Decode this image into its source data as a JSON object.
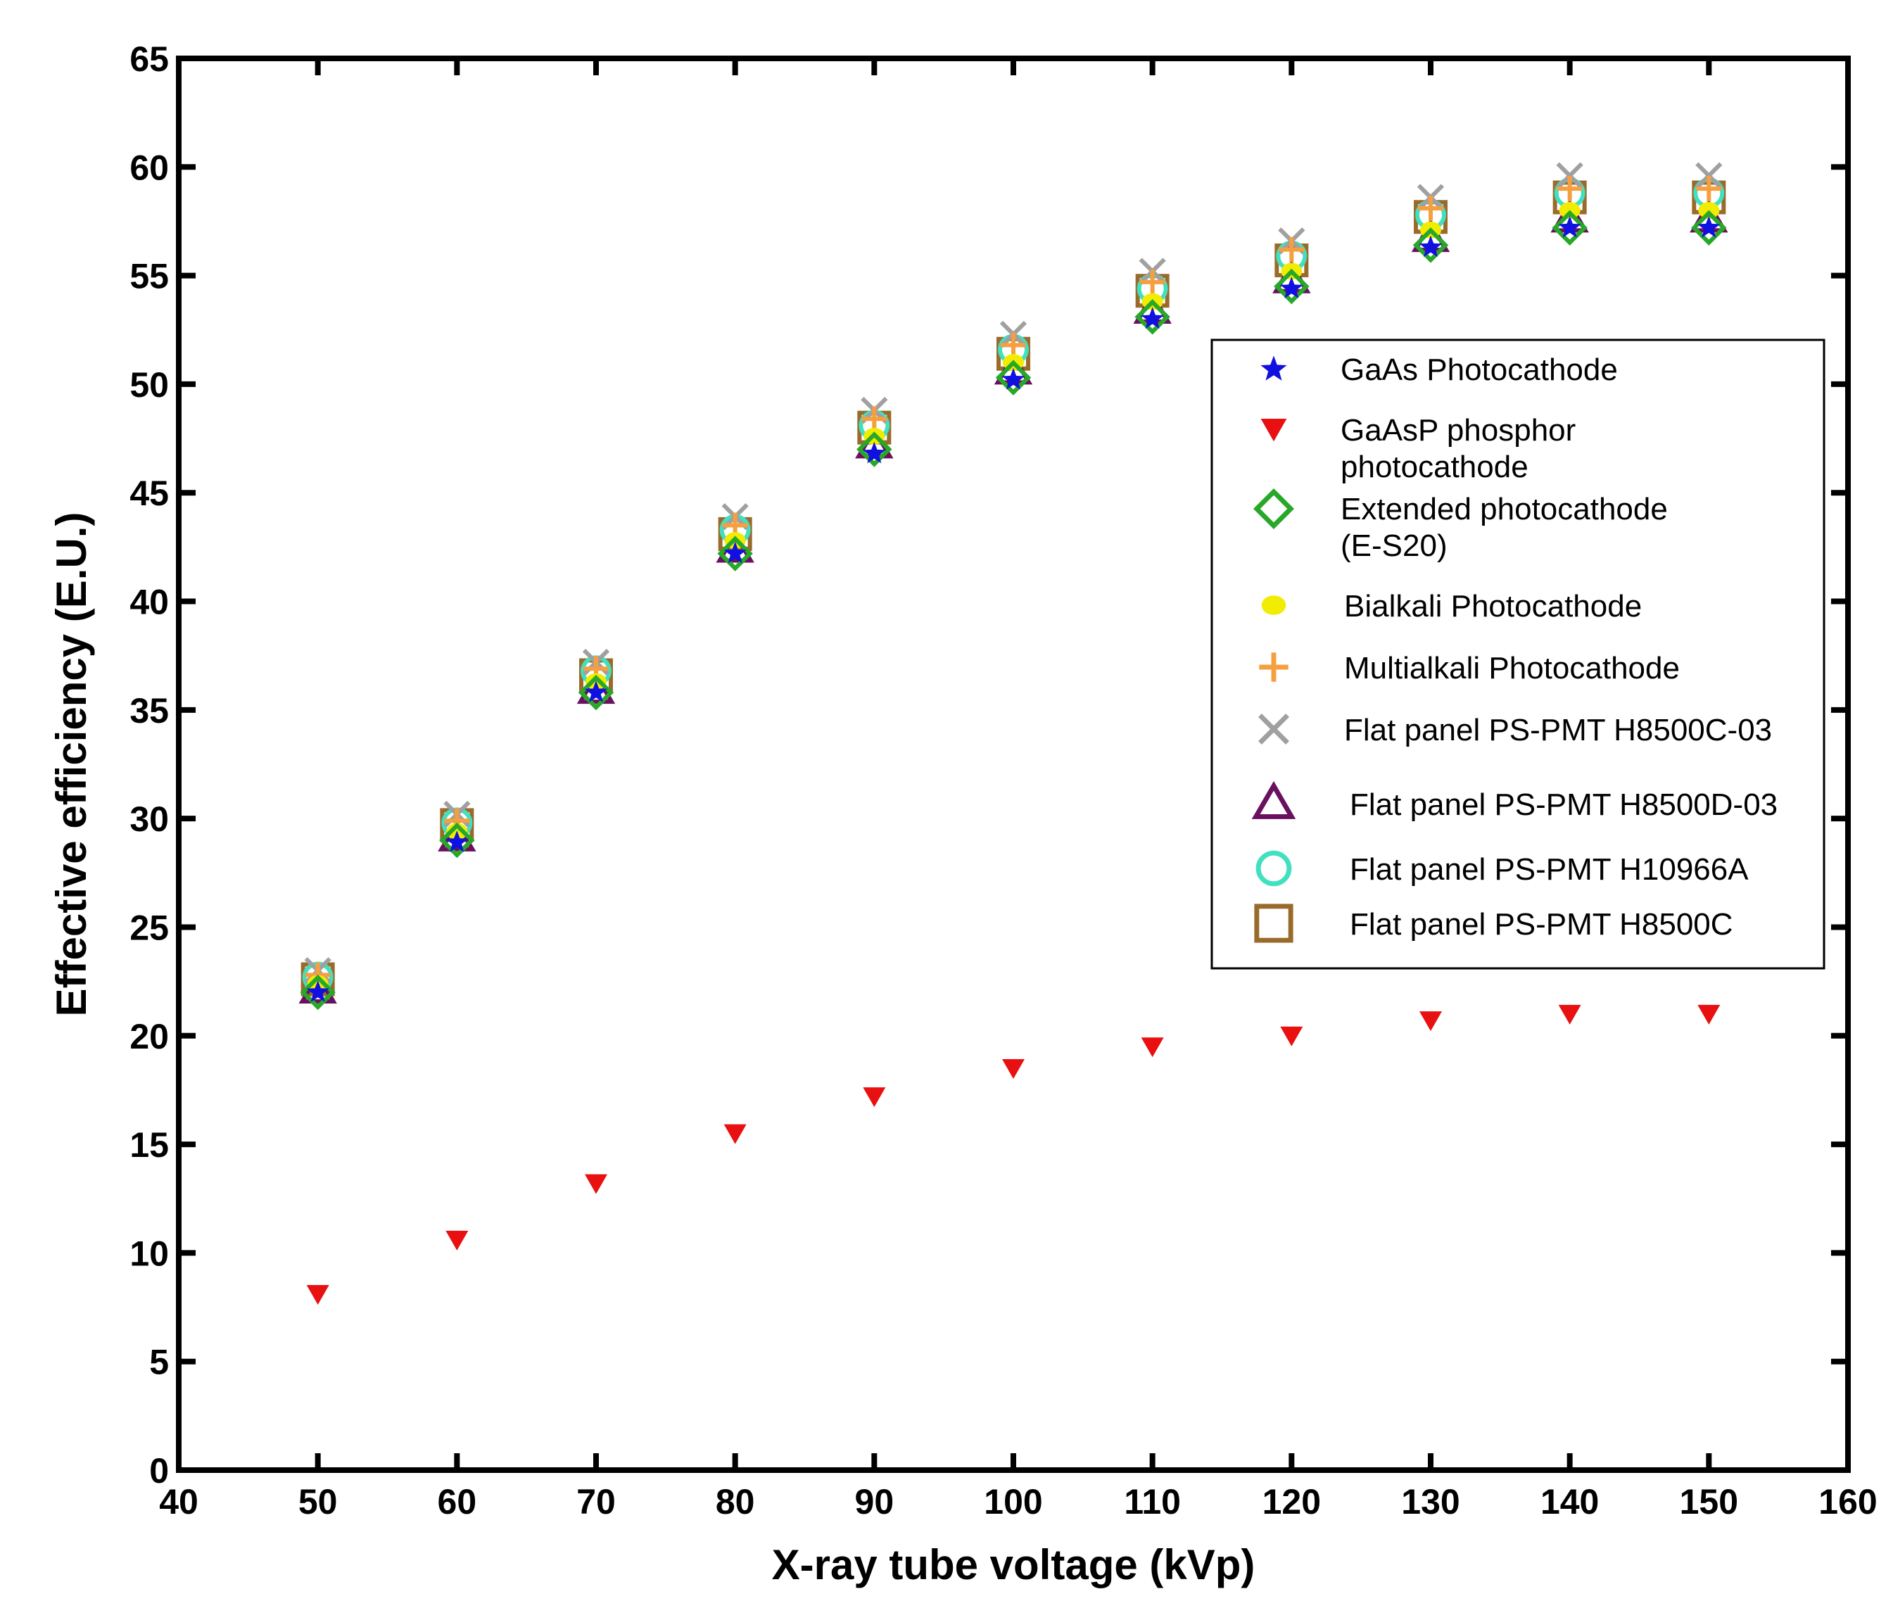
{
  "chart_data": {
    "type": "scatter",
    "title": "",
    "xlabel": "X-ray tube voltage (kVp)",
    "ylabel": "Effective efficiency (E.U.)",
    "xlim": [
      40,
      160
    ],
    "ylim": [
      0,
      65
    ],
    "xticks": [
      40,
      50,
      60,
      70,
      80,
      90,
      100,
      110,
      120,
      130,
      140,
      150,
      160
    ],
    "yticks": [
      0,
      5,
      10,
      15,
      20,
      25,
      30,
      35,
      40,
      45,
      50,
      55,
      60,
      65
    ],
    "grid": false,
    "legend_position": "right-upper-middle",
    "x": [
      50,
      60,
      70,
      80,
      90,
      100,
      110,
      120,
      130,
      140,
      150
    ],
    "series": [
      {
        "name": "GaAs Photocathode",
        "legend_lines": [
          "GaAs Photocathode"
        ],
        "marker": "star",
        "color": "#1010e0",
        "values": [
          22.0,
          28.9,
          35.8,
          42.2,
          46.8,
          50.2,
          53.0,
          54.4,
          56.3,
          57.2,
          57.2
        ]
      },
      {
        "name": "GaAsP phosphor photocathode",
        "legend_lines": [
          "GaAsP phosphor",
          "photocathode"
        ],
        "marker": "triangle-down",
        "color": "#e81010",
        "values": [
          8.1,
          10.6,
          13.2,
          15.5,
          17.2,
          18.5,
          19.5,
          20.0,
          20.7,
          21.0,
          21.0
        ]
      },
      {
        "name": "Extended photocathode (E-S20)",
        "legend_lines": [
          "Extended photocathode",
          "(E-S20)"
        ],
        "marker": "diamond",
        "color": "#28a828",
        "values": [
          22.0,
          29.0,
          35.8,
          42.2,
          47.0,
          50.3,
          53.1,
          54.5,
          56.4,
          57.2,
          57.2
        ]
      },
      {
        "name": "Bialkali Photocathode",
        "legend_lines": [
          "Bialkali Photocathode"
        ],
        "marker": "ellipse",
        "color": "#f2ec00",
        "values": [
          22.4,
          29.4,
          36.3,
          42.8,
          47.6,
          51.0,
          53.8,
          55.2,
          57.1,
          58.0,
          58.0
        ]
      },
      {
        "name": "Multialkali Photocathode",
        "legend_lines": [
          "Multialkali Photocathode"
        ],
        "marker": "plus",
        "color": "#f5a040",
        "values": [
          22.8,
          29.9,
          36.9,
          43.5,
          48.4,
          51.8,
          54.7,
          56.2,
          58.1,
          59.0,
          59.0
        ]
      },
      {
        "name": "Flat panel PS-PMT H8500C-03",
        "legend_lines": [
          "Flat panel PS-PMT H8500C-03"
        ],
        "marker": "x",
        "color": "#a0a0a0",
        "values": [
          23.0,
          30.2,
          37.2,
          43.9,
          48.8,
          52.3,
          55.2,
          56.6,
          58.6,
          59.6,
          59.6
        ]
      },
      {
        "name": "Flat panel PS-PMT H8500D-03",
        "legend_lines": [
          "Flat panel PS-PMT H8500D-03"
        ],
        "marker": "triangle-up",
        "color": "#6a1060",
        "values": [
          22.1,
          29.1,
          35.9,
          42.4,
          47.2,
          50.6,
          53.4,
          54.8,
          56.7,
          57.6,
          57.6
        ]
      },
      {
        "name": "Flat panel PS-PMT H10966A",
        "legend_lines": [
          "Flat panel PS-PMT H10966A"
        ],
        "marker": "circle",
        "color": "#40e0c0",
        "values": [
          22.7,
          29.8,
          36.8,
          43.3,
          48.1,
          51.6,
          54.4,
          55.9,
          57.8,
          58.8,
          58.8
        ]
      },
      {
        "name": "Flat panel PS-PMT H8500C",
        "legend_lines": [
          "Flat panel PS-PMT H8500C"
        ],
        "marker": "square",
        "color": "#9a6a2a",
        "values": [
          22.6,
          29.7,
          36.6,
          43.1,
          48.0,
          51.4,
          54.3,
          55.7,
          57.7,
          58.6,
          58.6
        ]
      }
    ]
  }
}
